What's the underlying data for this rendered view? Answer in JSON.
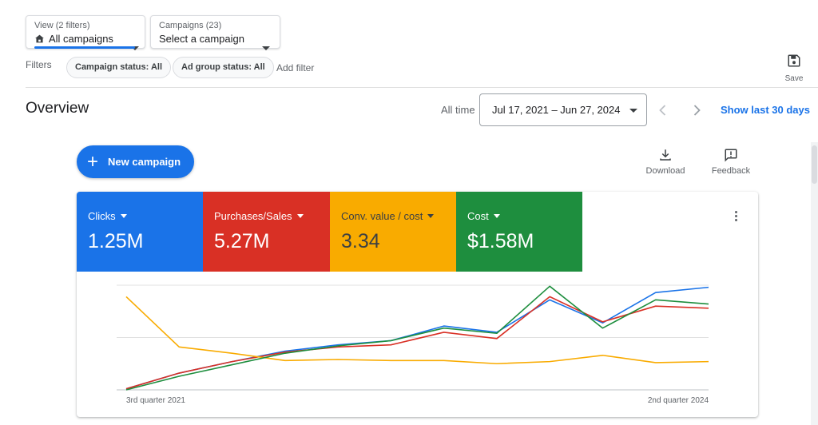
{
  "view_dropdown": {
    "label": "View (2 filters)",
    "value": "All campaigns",
    "icon": "home-icon"
  },
  "campaigns_dropdown": {
    "label": "Campaigns (23)",
    "value": "Select a campaign"
  },
  "filters": {
    "label": "Filters",
    "chips": [
      "Campaign status: All",
      "Ad group status: All"
    ],
    "add_filter": "Add filter"
  },
  "save": {
    "label": "Save",
    "icon": "save-icon"
  },
  "overview": {
    "title": "Overview",
    "range_label": "All time",
    "date_range": "Jul 17, 2021 – Jun 27, 2024",
    "show_last": "Show last 30 days"
  },
  "actions": {
    "new_campaign": "New campaign",
    "download": "Download",
    "feedback": "Feedback"
  },
  "metrics": [
    {
      "name": "Clicks",
      "value": "1.25M",
      "color": "#1a73e8",
      "text_color": "#ffffff"
    },
    {
      "name": "Purchases/Sales",
      "value": "5.27M",
      "color": "#d93025",
      "text_color": "#ffffff"
    },
    {
      "name": "Conv. value / cost",
      "value": "3.34",
      "color": "#f9ab00",
      "text_color": "#3c4043"
    },
    {
      "name": "Cost",
      "value": "$1.58M",
      "color": "#1e8e3e",
      "text_color": "#ffffff"
    }
  ],
  "chart_data": {
    "type": "line",
    "x_labels": [
      "3rd quarter 2021",
      "2nd quarter 2024"
    ],
    "x": [
      0,
      1,
      2,
      3,
      4,
      5,
      6,
      7,
      8,
      9,
      10,
      11
    ],
    "ylim": [
      0,
      100
    ],
    "grid": true,
    "series": [
      {
        "color": "#1a73e8",
        "values": [
          1,
          16,
          27,
          37,
          43,
          47,
          61,
          55,
          86,
          64,
          93,
          98
        ]
      },
      {
        "color": "#d93025",
        "values": [
          1,
          16,
          27,
          36,
          41,
          43,
          55,
          49,
          89,
          65,
          80,
          78
        ]
      },
      {
        "color": "#f9ab00",
        "values": [
          89,
          41,
          35,
          28,
          29,
          28,
          28,
          25,
          27,
          33,
          26,
          27
        ]
      },
      {
        "color": "#1e8e3e",
        "values": [
          0,
          13,
          24,
          35,
          42,
          47,
          59,
          54,
          99,
          59,
          86,
          82
        ]
      }
    ]
  }
}
